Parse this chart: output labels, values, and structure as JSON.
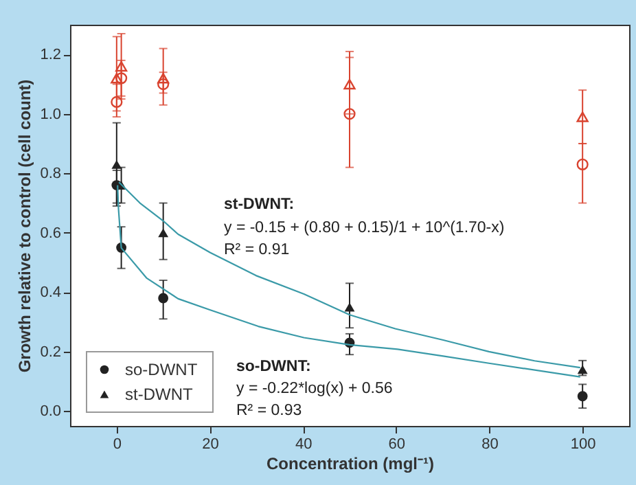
{
  "chart_data": {
    "type": "scatter",
    "xlabel": "Concentration (mgl⁻¹)",
    "ylabel": "Growth relative to control (cell count)",
    "xlim": [
      -10,
      110
    ],
    "xticks": [
      0,
      20,
      40,
      60,
      80,
      100
    ],
    "ylim": [
      -0.05,
      1.3
    ],
    "yticks": [
      {
        "value": 0,
        "label": "0.0"
      },
      {
        "value": 0.2,
        "label": "0.2"
      },
      {
        "value": 0.4,
        "label": "0.4"
      },
      {
        "value": 0.6,
        "label": "0.6"
      },
      {
        "value": 0.8,
        "label": "0.8"
      },
      {
        "value": 1.0,
        "label": "1.0"
      },
      {
        "value": 1.2,
        "label": "1.2"
      }
    ],
    "grid": false,
    "legend": "bottom left",
    "series": [
      {
        "name": "so-DWNT",
        "color": "#222222",
        "marker": "circle",
        "x": [
          0,
          1,
          10,
          50,
          100
        ],
        "values": [
          0.76,
          0.55,
          0.38,
          0.23,
          0.05
        ],
        "errors": [
          [
            0.69,
            0.81
          ],
          [
            0.48,
            0.62
          ],
          [
            0.31,
            0.44
          ],
          [
            0.19,
            0.26
          ],
          [
            0.01,
            0.09
          ]
        ]
      },
      {
        "name": "st-DWNT",
        "color": "#222222",
        "marker": "triangle",
        "x": [
          0,
          1,
          10,
          50,
          100
        ],
        "values": [
          0.83,
          0.76,
          0.6,
          0.35,
          0.14
        ],
        "errors": [
          [
            0.7,
            0.97
          ],
          [
            0.7,
            0.82
          ],
          [
            0.51,
            0.7
          ],
          [
            0.28,
            0.43
          ],
          [
            0.12,
            0.17
          ]
        ]
      },
      {
        "color": "#d9432f",
        "marker": "circle",
        "x": [
          0,
          1,
          10,
          50,
          100
        ],
        "values": [
          1.04,
          1.12,
          1.1,
          1.0,
          0.83
        ],
        "errors": [
          [
            0.99,
            1.1
          ],
          [
            1.06,
            1.18
          ],
          [
            1.07,
            1.14
          ],
          [
            0.82,
            1.19
          ],
          [
            0.7,
            0.9
          ]
        ]
      },
      {
        "color": "#d9432f",
        "marker": "triangle",
        "x": [
          0,
          1,
          10,
          50,
          100
        ],
        "values": [
          1.12,
          1.16,
          1.12,
          1.1,
          0.99
        ],
        "errors": [
          [
            1.01,
            1.26
          ],
          [
            1.05,
            1.27
          ],
          [
            1.03,
            1.22
          ],
          [
            1.0,
            1.21
          ],
          [
            0.9,
            1.08
          ]
        ]
      },
      {
        "type": "line",
        "line_style": "solid",
        "color": "#3a9aa8",
        "x": [
          0.5,
          5,
          10,
          13.2,
          20.1,
          29.9,
          40.2,
          50,
          59.8,
          70.1,
          79.9,
          89.7,
          99.5
        ],
        "values": [
          0.77,
          0.7,
          0.64,
          0.595,
          0.533,
          0.456,
          0.394,
          0.324,
          0.277,
          0.239,
          0.2,
          0.169,
          0.146
        ]
      },
      {
        "type": "line",
        "line_style": "solid",
        "color": "#3a9aa8",
        "x": [
          0.2,
          0.4,
          1,
          6.4,
          13.2,
          20.1,
          30.4,
          40.2,
          50,
          60.3,
          70.1,
          79.9,
          99.5
        ],
        "values": [
          0.76,
          0.68,
          0.549,
          0.448,
          0.378,
          0.34,
          0.285,
          0.247,
          0.223,
          0.208,
          0.185,
          0.161,
          0.115
        ]
      }
    ],
    "annotations": [
      "st-DWNT:",
      "y = -0.15 + (0.80 + 0.15)/1 + 10^(1.70-x)",
      "R² = 0.91",
      "so-DWNT:",
      "y = -0.22*log(x) + 0.56",
      "R² = 0.93"
    ]
  }
}
